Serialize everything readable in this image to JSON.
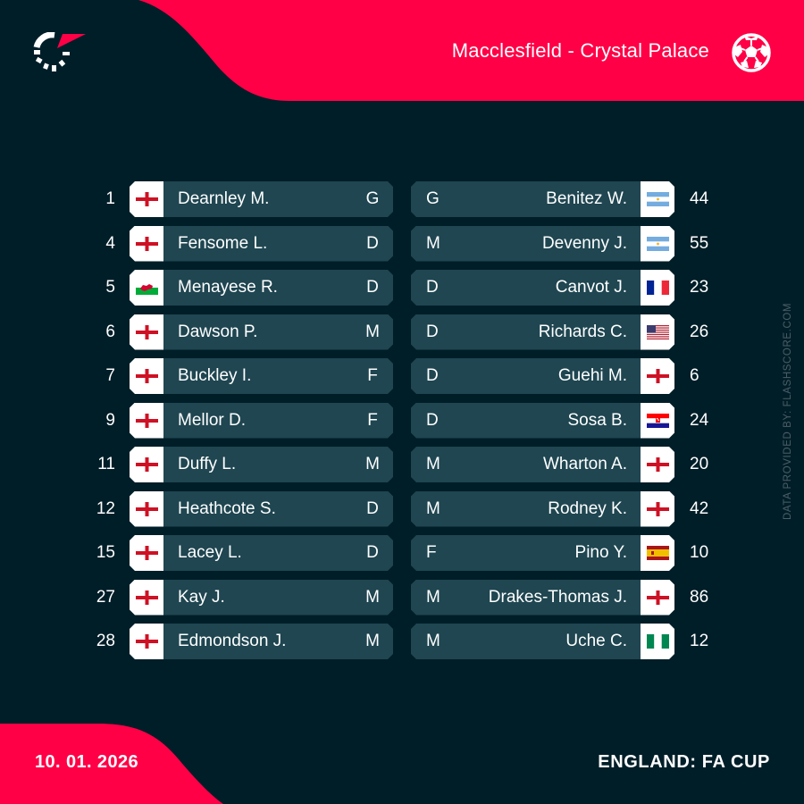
{
  "header": {
    "match_title": "Macclesfield - Crystal Palace",
    "logo_icon": "flashscore-logo-icon",
    "sport_icon": "soccer-ball-icon"
  },
  "credit": "DATA PROVIDED BY: FLASHSCORE.COM",
  "footer": {
    "date": "10. 01. 2026",
    "competition": "ENGLAND: FA CUP"
  },
  "colors": {
    "background": "#001e28",
    "accent": "#ff0046",
    "row_background": "#1f4651",
    "flag_box": "#ffffff"
  },
  "home": {
    "team": "Macclesfield",
    "players": [
      {
        "number": "1",
        "name": "Dearnley M.",
        "position": "G",
        "flag": "england"
      },
      {
        "number": "4",
        "name": "Fensome L.",
        "position": "D",
        "flag": "england"
      },
      {
        "number": "5",
        "name": "Menayese R.",
        "position": "D",
        "flag": "wales"
      },
      {
        "number": "6",
        "name": "Dawson P.",
        "position": "M",
        "flag": "england"
      },
      {
        "number": "7",
        "name": "Buckley I.",
        "position": "F",
        "flag": "england"
      },
      {
        "number": "9",
        "name": "Mellor D.",
        "position": "F",
        "flag": "england"
      },
      {
        "number": "11",
        "name": "Duffy L.",
        "position": "M",
        "flag": "england"
      },
      {
        "number": "12",
        "name": "Heathcote S.",
        "position": "D",
        "flag": "england"
      },
      {
        "number": "15",
        "name": "Lacey L.",
        "position": "D",
        "flag": "england"
      },
      {
        "number": "27",
        "name": "Kay J.",
        "position": "M",
        "flag": "england"
      },
      {
        "number": "28",
        "name": "Edmondson J.",
        "position": "M",
        "flag": "england"
      }
    ]
  },
  "away": {
    "team": "Crystal Palace",
    "players": [
      {
        "number": "44",
        "name": "Benitez W.",
        "position": "G",
        "flag": "argentina"
      },
      {
        "number": "55",
        "name": "Devenny J.",
        "position": "M",
        "flag": "argentina"
      },
      {
        "number": "23",
        "name": "Canvot J.",
        "position": "D",
        "flag": "france"
      },
      {
        "number": "26",
        "name": "Richards C.",
        "position": "D",
        "flag": "usa"
      },
      {
        "number": "6",
        "name": "Guehi M.",
        "position": "D",
        "flag": "england"
      },
      {
        "number": "24",
        "name": "Sosa B.",
        "position": "D",
        "flag": "croatia"
      },
      {
        "number": "20",
        "name": "Wharton A.",
        "position": "M",
        "flag": "england"
      },
      {
        "number": "42",
        "name": "Rodney K.",
        "position": "M",
        "flag": "england"
      },
      {
        "number": "10",
        "name": "Pino Y.",
        "position": "F",
        "flag": "spain"
      },
      {
        "number": "86",
        "name": "Drakes-Thomas J.",
        "position": "M",
        "flag": "england"
      },
      {
        "number": "12",
        "name": "Uche C.",
        "position": "M",
        "flag": "nigeria"
      }
    ]
  }
}
